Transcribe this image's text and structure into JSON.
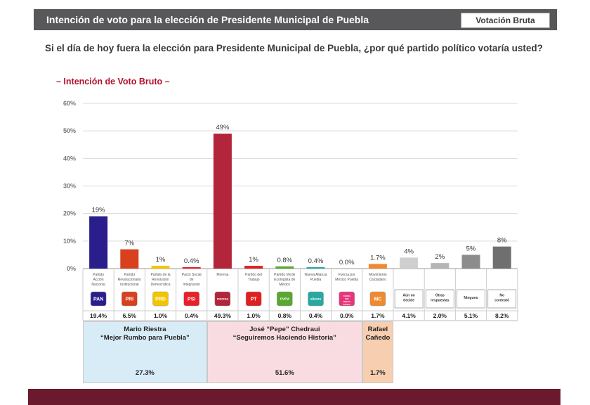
{
  "header": {
    "title": "Intención de voto para la elección de Presidente Municipal de Puebla",
    "tag": "Votación Bruta"
  },
  "question": "Si el día de hoy fuera la elección para Presidente Municipal de Puebla, ¿por qué partido político votaría usted?",
  "subtitle": "– Intención de Voto Bruto –",
  "chart_data": {
    "type": "bar",
    "title": "– Intención de Voto Bruto –",
    "ylim": [
      0,
      60
    ],
    "yticks": [
      "0%",
      "10%",
      "20%",
      "30%",
      "40%",
      "50%",
      "60%"
    ],
    "grid": true,
    "categories": [
      "Partido Acción Nacional",
      "Partido Revolucionario Institucional",
      "Partido de la Revolución Democrática",
      "Pacto Social de Integración",
      "Morena",
      "Partido del Trabajo",
      "Partido Verde Ecologista de México",
      "Nueva Alianza Puebla",
      "Fuerza por México Puebla",
      "Movimiento Ciudadano",
      "Aún no decide",
      "Otras respuestas",
      "Ninguno",
      "No contestó"
    ],
    "values": [
      19,
      7,
      1,
      0.4,
      49,
      1,
      0.8,
      0.4,
      0.0,
      1.7,
      4,
      2,
      5,
      8
    ],
    "bar_labels": [
      "19%",
      "7%",
      "1%",
      "0.4%",
      "49%",
      "1%",
      "0.8%",
      "0.4%",
      "0.0%",
      "1.7%",
      "4%",
      "2%",
      "5%",
      "8%"
    ],
    "table_values": [
      "19.4%",
      "6.5%",
      "1.0%",
      "0.4%",
      "49.3%",
      "1.0%",
      "0.8%",
      "0.4%",
      "0.0%",
      "1.7%",
      "4.1%",
      "2.0%",
      "5.1%",
      "8.2%"
    ],
    "logos": [
      "PAN",
      "PRI",
      "PRD",
      "PSI",
      "morena",
      "PT",
      "PVEM",
      "alianza",
      "FUERZA POR MÉXICO PUEBLA",
      "MC",
      "",
      "",
      "",
      ""
    ],
    "colors": [
      "#2a1e8c",
      "#d8401e",
      "#f2c500",
      "#e8202a",
      "#b2253a",
      "#e02020",
      "#5aa732",
      "#2aa8a0",
      "#e6357a",
      "#f08a30",
      "#cfcfcf",
      "#b5b5b5",
      "#8c8c8c",
      "#6f6f6f"
    ]
  },
  "candidates": [
    {
      "name": "Mario Riestra",
      "slogan": "“Mejor Rumbo para Puebla”",
      "pct": "27.3%",
      "color": "#d8ecf7"
    },
    {
      "name": "José “Pepe” Chedraui",
      "slogan": "“Seguiremos Haciendo Historia”",
      "pct": "51.6%",
      "color": "#f8dce2"
    },
    {
      "name": "Rafael Cañedo",
      "slogan": "",
      "pct": "1.7%",
      "color": "#f7ceb0"
    }
  ]
}
